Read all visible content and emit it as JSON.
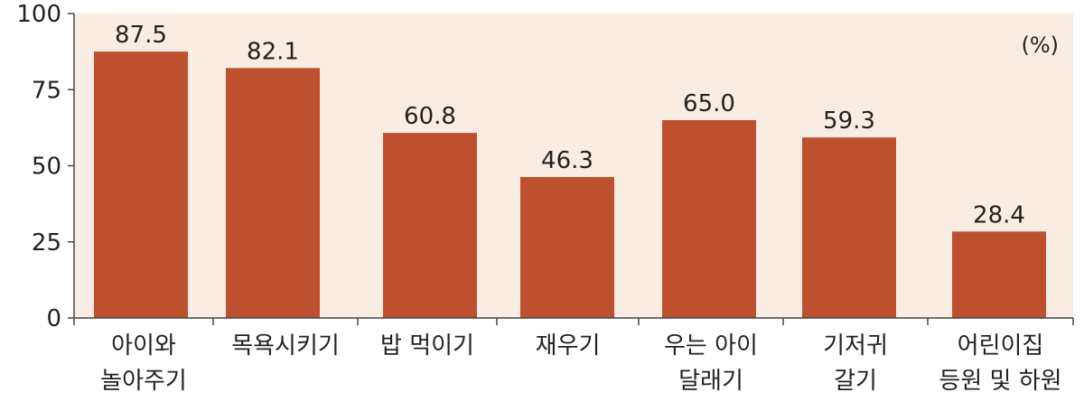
{
  "chart_data": {
    "type": "bar",
    "categories": [
      [
        "아이와",
        "놀아주기"
      ],
      [
        "목욕시키기"
      ],
      [
        "밥 먹이기"
      ],
      [
        "재우기"
      ],
      [
        "우는 아이",
        "달래기"
      ],
      [
        "기저귀",
        "갈기"
      ],
      [
        "어린이집",
        "등원 및 하원"
      ]
    ],
    "values": [
      87.5,
      82.1,
      60.8,
      46.3,
      65.0,
      59.3,
      28.4
    ],
    "value_labels": [
      "87.5",
      "82.1",
      "60.8",
      "46.3",
      "65.0",
      "59.3",
      "28.4"
    ],
    "yticks": [
      0,
      25,
      50,
      75,
      100
    ],
    "ylim": [
      0,
      100
    ],
    "unit": "(%)",
    "grid": false,
    "colors": {
      "background": "#f9ede3",
      "bar": "#bd502f",
      "axis": "#444444",
      "text": "#222222"
    }
  }
}
